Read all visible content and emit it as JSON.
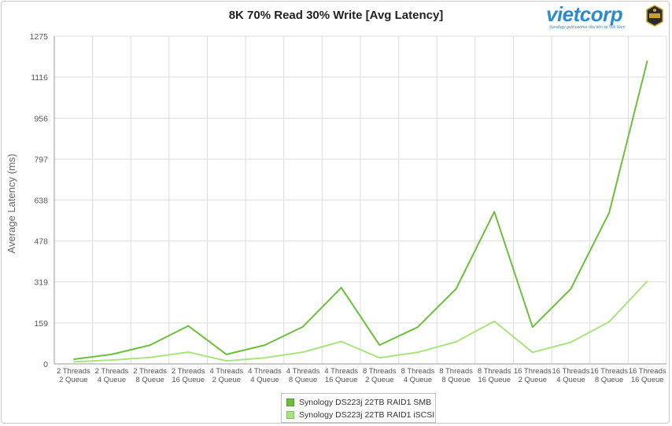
{
  "colors": {
    "smb": "#6cbf3c",
    "iscsi": "#a8e47d",
    "grid": "#dcdcdc",
    "axis": "#9a9a9a",
    "brand": "#2a8ccf"
  },
  "logo": {
    "word": "vietcorp",
    "tagline": "Synology gold partner đầu tiên tại Việt Nam",
    "icon": "gold-partner-badge-icon"
  },
  "chart_data": {
    "type": "line",
    "title": "8K 70% Read 30% Write [Avg Latency]",
    "xlabel": "",
    "ylabel": "Average Latency (ms)",
    "ylim": [
      0,
      1275
    ],
    "yticks": [
      "0",
      "159",
      "319",
      "478",
      "638",
      "797",
      "956",
      "1116",
      "1275"
    ],
    "grid": true,
    "legend_position": "bottom",
    "categories": [
      [
        "2 Threads",
        "2 Queue"
      ],
      [
        "2 Threads",
        "4 Queue"
      ],
      [
        "2 Threads",
        "8 Queue"
      ],
      [
        "2 Threads",
        "16 Queue"
      ],
      [
        "4 Threads",
        "2 Queue"
      ],
      [
        "4 Threads",
        "4 Queue"
      ],
      [
        "4 Threads",
        "8 Queue"
      ],
      [
        "4 Threads",
        "16 Queue"
      ],
      [
        "8 Threads",
        "2 Queue"
      ],
      [
        "8 Threads",
        "4 Queue"
      ],
      [
        "8 Threads",
        "8 Queue"
      ],
      [
        "8 Threads",
        "16 Queue"
      ],
      [
        "16 Threads",
        "2 Queue"
      ],
      [
        "16 Threads",
        "4 Queue"
      ],
      [
        "16 Threads",
        "8 Queue"
      ],
      [
        "16 Threads",
        "16 Queue"
      ]
    ],
    "series": [
      {
        "name": "Synology DS223j 22TB RAID1 SMB",
        "values": [
          18,
          37,
          73,
          148,
          37,
          73,
          145,
          297,
          73,
          143,
          292,
          592,
          143,
          292,
          588,
          1180
        ]
      },
      {
        "name": "Synology DS223j 22TB RAID1 iSCSI",
        "values": [
          8,
          15,
          25,
          46,
          12,
          24,
          46,
          87,
          24,
          45,
          86,
          166,
          45,
          84,
          164,
          322
        ]
      }
    ]
  }
}
